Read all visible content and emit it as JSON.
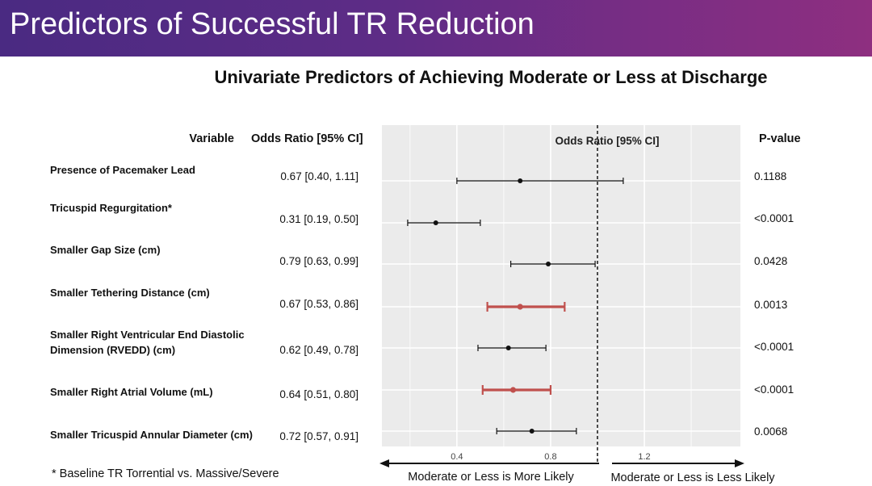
{
  "header": {
    "title": "Predictors of Successful TR Reduction"
  },
  "chart_data": {
    "type": "forest",
    "title": "Univariate Predictors of Achieving Moderate or Less at Discharge",
    "columns": {
      "variable": "Variable",
      "or_ci": "Odds Ratio [95% CI]",
      "pvalue": "P-value"
    },
    "plot_label": "Odds Ratio [95% CI]",
    "xlim": [
      0.08,
      1.61
    ],
    "xticks": [
      {
        "value": 0.4,
        "label": "0.4"
      },
      {
        "value": 0.8,
        "label": "0.8"
      },
      {
        "value": 1.2,
        "label": "1.2"
      }
    ],
    "reference_line": 1.0,
    "grid": true,
    "direction_left": "Moderate or Less is More Likely",
    "direction_right": "Moderate or Less is Less Likely",
    "rows": [
      {
        "variable": [
          "Presence of Pacemaker Lead"
        ],
        "or": 0.67,
        "lower": 0.4,
        "upper": 1.11,
        "or_text": "0.67 [0.40, 1.11]",
        "pvalue": "0.1188",
        "highlight": false
      },
      {
        "variable": [
          "Tricuspid Regurgitation*"
        ],
        "or": 0.31,
        "lower": 0.19,
        "upper": 0.5,
        "or_text": "0.31 [0.19, 0.50]",
        "pvalue": "<0.0001",
        "highlight": false
      },
      {
        "variable": [
          "Smaller Gap Size (cm)"
        ],
        "or": 0.79,
        "lower": 0.63,
        "upper": 0.99,
        "or_text": "0.79 [0.63, 0.99]",
        "pvalue": "0.0428",
        "highlight": false
      },
      {
        "variable": [
          "Smaller Tethering Distance (cm)"
        ],
        "or": 0.67,
        "lower": 0.53,
        "upper": 0.86,
        "or_text": "0.67 [0.53, 0.86]",
        "pvalue": "0.0013",
        "highlight": true
      },
      {
        "variable": [
          "Smaller Right Ventricular End Diastolic",
          "Dimension (RVEDD) (cm)"
        ],
        "or": 0.62,
        "lower": 0.49,
        "upper": 0.78,
        "or_text": "0.62 [0.49, 0.78]",
        "pvalue": "<0.0001",
        "highlight": false
      },
      {
        "variable": [
          "Smaller Right Atrial Volume (mL)"
        ],
        "or": 0.64,
        "lower": 0.51,
        "upper": 0.8,
        "or_text": "0.64 [0.51, 0.80]",
        "pvalue": "<0.0001",
        "highlight": true
      },
      {
        "variable": [
          "Smaller Tricuspid Annular Diameter (cm)"
        ],
        "or": 0.72,
        "lower": 0.57,
        "upper": 0.91,
        "or_text": "0.72 [0.57, 0.91]",
        "pvalue": "0.0068",
        "highlight": false
      }
    ],
    "colors": {
      "normal": "#111111",
      "highlight": "#c0504d",
      "panel": "#ebebeb",
      "grid": "#ffffff"
    }
  },
  "footnote": "* Baseline TR Torrential vs. Massive/Severe"
}
